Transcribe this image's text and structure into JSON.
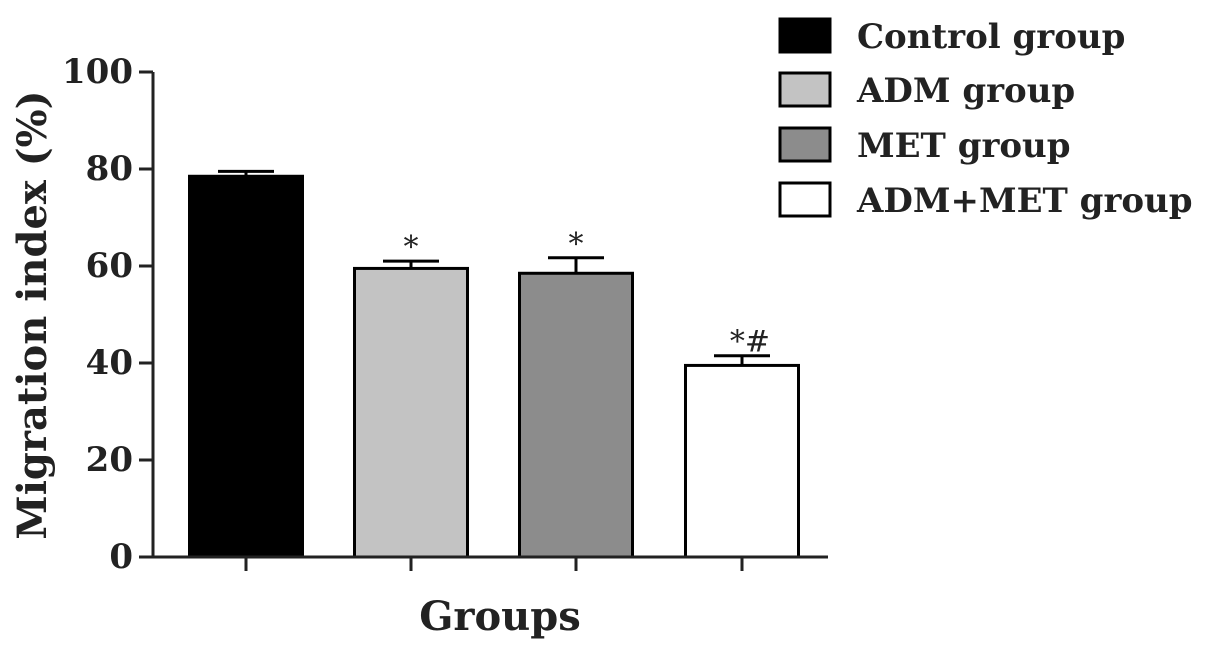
{
  "chart_data": {
    "type": "bar",
    "title": "",
    "xlabel": "Groups",
    "ylabel": "Migration index (%)",
    "ylim": [
      0,
      100
    ],
    "yticks": [
      0,
      20,
      40,
      60,
      80,
      100
    ],
    "grid": false,
    "legend_position": "top-right",
    "series": [
      {
        "name": "Control group",
        "value": 78.5,
        "error": 1.0,
        "color": "#000000",
        "annotation": ""
      },
      {
        "name": "ADM group",
        "value": 59.5,
        "error": 1.5,
        "color": "#c3c3c3",
        "annotation": "*"
      },
      {
        "name": "MET group",
        "value": 58.5,
        "error": 3.2,
        "color": "#8c8c8c",
        "annotation": "*"
      },
      {
        "name": "ADM+MET group",
        "value": 39.5,
        "error": 2.0,
        "color": "#ffffff",
        "annotation": "*#"
      }
    ]
  }
}
